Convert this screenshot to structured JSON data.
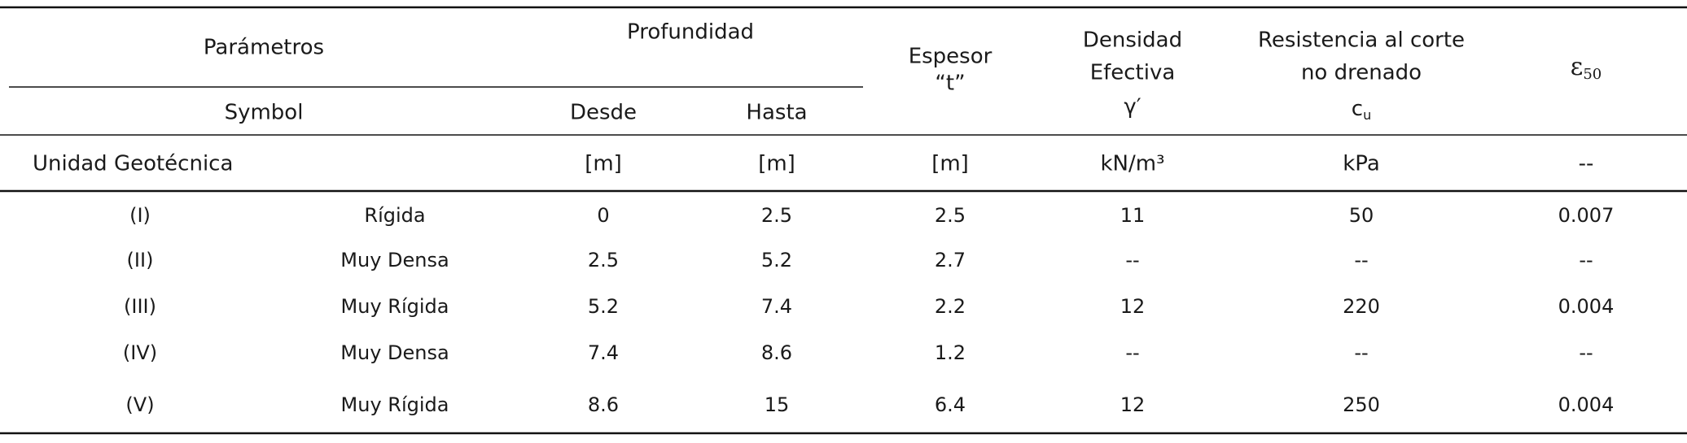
{
  "header": {
    "parametros": "Parámetros",
    "profundidad": "Profundidad",
    "symbol": "Symbol",
    "desde": "Desde",
    "hasta": "Hasta",
    "espesor": [
      "Espesor",
      "“t”"
    ],
    "densidad": [
      "Densidad",
      "Efectiva",
      "γ′"
    ],
    "resistencia": [
      "Resistencia al corte",
      "no drenado"
    ],
    "cu": {
      "symbol": "c",
      "sub": "u"
    },
    "epsilon": {
      "symbol": "ε",
      "sub": "50"
    }
  },
  "units": {
    "label": "Unidad Geotécnica",
    "values": [
      "[m]",
      "[m]",
      "[m]",
      "kN/m³",
      "kPa",
      "--"
    ]
  },
  "rows": [
    [
      "(I)",
      "Rígida",
      "0",
      "2.5",
      "2.5",
      "11",
      "50",
      "0.007"
    ],
    [
      "(II)",
      "Muy Densa",
      "2.5",
      "5.2",
      "2.7",
      "--",
      "--",
      "--"
    ],
    [
      "(III)",
      "Muy Rígida",
      "5.2",
      "7.4",
      "2.2",
      "12",
      "220",
      "0.004"
    ],
    [
      "(IV)",
      "Muy Densa",
      "7.4",
      "8.6",
      "1.2",
      "--",
      "--",
      "--"
    ],
    [
      "(V)",
      "Muy Rígida",
      "8.6",
      "15",
      "6.4",
      "12",
      "250",
      "0.004"
    ]
  ]
}
